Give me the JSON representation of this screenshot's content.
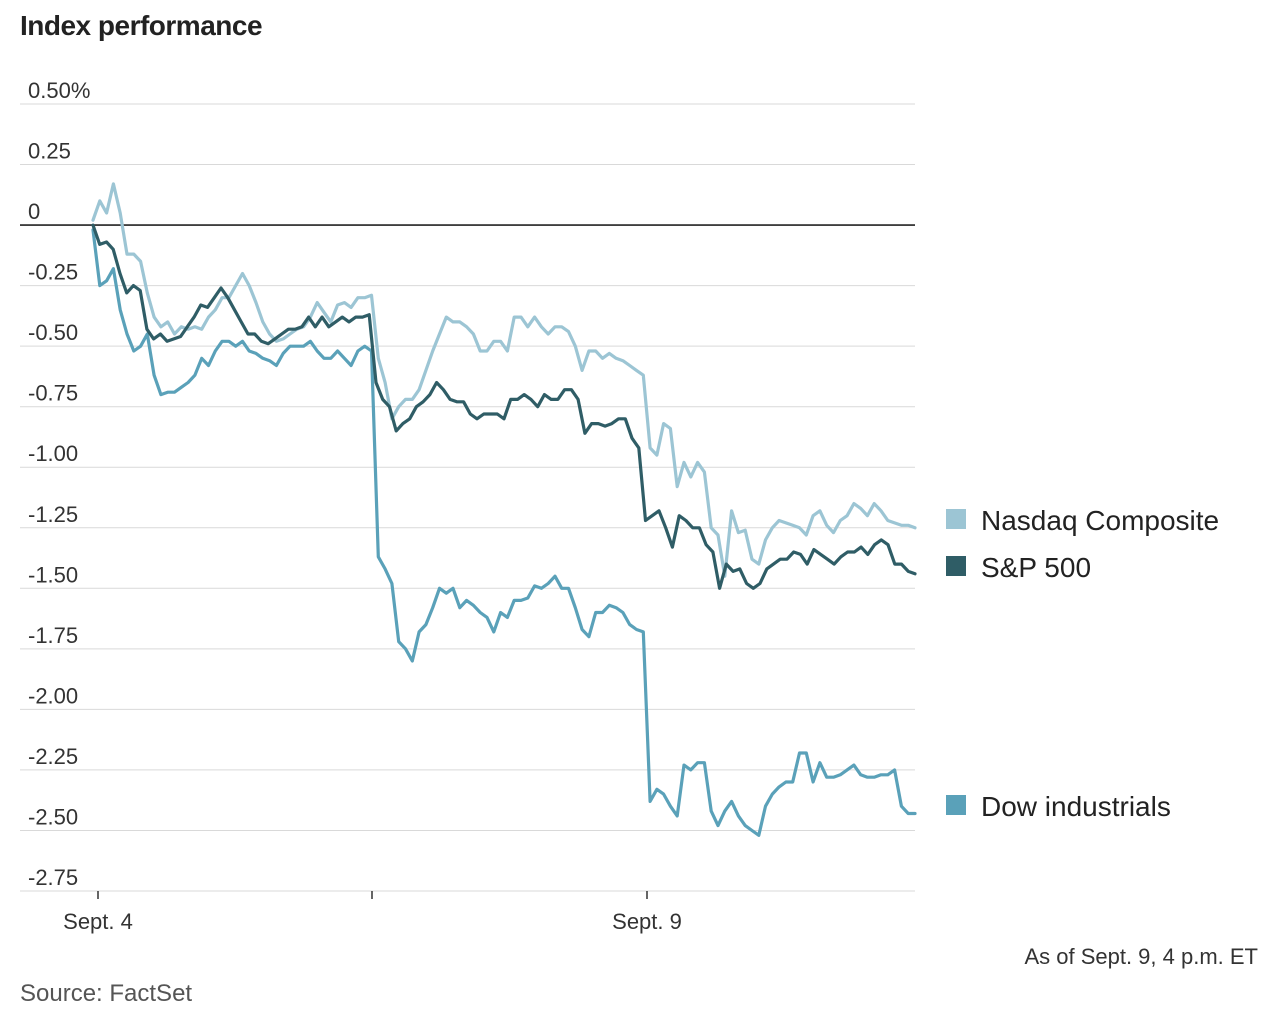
{
  "chart_data": {
    "type": "line",
    "title": "Index performance",
    "ylim": [
      -2.75,
      0.5
    ],
    "yticks": [
      0.5,
      0.25,
      0,
      -0.25,
      -0.5,
      -0.75,
      -1.0,
      -1.25,
      -1.5,
      -1.75,
      -2.0,
      -2.25,
      -2.5,
      -2.75
    ],
    "ytick_labels": [
      "0.50%",
      "0.25",
      "0",
      "-0.25",
      "-0.50",
      "-0.75",
      "-1.00",
      "-1.25",
      "-1.50",
      "-1.75",
      "-2.00",
      "-2.25",
      "-2.50",
      "-2.75"
    ],
    "x_labels": [
      "Sept. 4",
      "",
      "Sept. 9"
    ],
    "grid": true,
    "legend": "right",
    "series": [
      {
        "name": "Nasdaq Composite",
        "color": "#9cc5d4",
        "values": [
          0.02,
          0.1,
          0.05,
          0.17,
          0.05,
          -0.12,
          -0.12,
          -0.15,
          -0.28,
          -0.38,
          -0.42,
          -0.4,
          -0.45,
          -0.42,
          -0.43,
          -0.42,
          -0.43,
          -0.38,
          -0.35,
          -0.3,
          -0.3,
          -0.25,
          -0.2,
          -0.25,
          -0.32,
          -0.4,
          -0.45,
          -0.48,
          -0.47,
          -0.45,
          -0.43,
          -0.42,
          -0.38,
          -0.32,
          -0.36,
          -0.4,
          -0.33,
          -0.32,
          -0.34,
          -0.3,
          -0.3,
          -0.29,
          -0.55,
          -0.65,
          -0.8,
          -0.75,
          -0.72,
          -0.72,
          -0.68,
          -0.6,
          -0.52,
          -0.45,
          -0.38,
          -0.4,
          -0.4,
          -0.42,
          -0.45,
          -0.52,
          -0.52,
          -0.48,
          -0.48,
          -0.52,
          -0.38,
          -0.38,
          -0.42,
          -0.38,
          -0.42,
          -0.45,
          -0.42,
          -0.42,
          -0.44,
          -0.5,
          -0.6,
          -0.52,
          -0.52,
          -0.55,
          -0.53,
          -0.55,
          -0.56,
          -0.58,
          -0.6,
          -0.62,
          -0.92,
          -0.95,
          -0.82,
          -0.84,
          -1.08,
          -0.98,
          -1.04,
          -0.98,
          -1.02,
          -1.25,
          -1.28,
          -1.45,
          -1.18,
          -1.27,
          -1.26,
          -1.38,
          -1.4,
          -1.3,
          -1.25,
          -1.22,
          -1.23,
          -1.24,
          -1.25,
          -1.28,
          -1.2,
          -1.18,
          -1.24,
          -1.27,
          -1.22,
          -1.2,
          -1.15,
          -1.17,
          -1.2,
          -1.15,
          -1.18,
          -1.22,
          -1.23,
          -1.24,
          -1.24,
          -1.25
        ]
      },
      {
        "name": "S&P 500",
        "color": "#2f5d66",
        "values": [
          0.0,
          -0.08,
          -0.07,
          -0.1,
          -0.2,
          -0.28,
          -0.25,
          -0.27,
          -0.43,
          -0.47,
          -0.45,
          -0.48,
          -0.47,
          -0.46,
          -0.42,
          -0.38,
          -0.33,
          -0.34,
          -0.3,
          -0.26,
          -0.3,
          -0.35,
          -0.4,
          -0.45,
          -0.45,
          -0.48,
          -0.49,
          -0.47,
          -0.45,
          -0.43,
          -0.43,
          -0.42,
          -0.38,
          -0.42,
          -0.38,
          -0.42,
          -0.4,
          -0.38,
          -0.4,
          -0.38,
          -0.38,
          -0.37,
          -0.65,
          -0.72,
          -0.75,
          -0.85,
          -0.82,
          -0.8,
          -0.75,
          -0.73,
          -0.7,
          -0.65,
          -0.68,
          -0.72,
          -0.73,
          -0.73,
          -0.78,
          -0.8,
          -0.78,
          -0.78,
          -0.78,
          -0.8,
          -0.72,
          -0.72,
          -0.7,
          -0.72,
          -0.75,
          -0.7,
          -0.72,
          -0.72,
          -0.68,
          -0.68,
          -0.72,
          -0.86,
          -0.82,
          -0.82,
          -0.83,
          -0.82,
          -0.8,
          -0.8,
          -0.88,
          -0.92,
          -1.22,
          -1.2,
          -1.18,
          -1.25,
          -1.33,
          -1.2,
          -1.22,
          -1.25,
          -1.25,
          -1.32,
          -1.35,
          -1.5,
          -1.4,
          -1.43,
          -1.42,
          -1.48,
          -1.5,
          -1.48,
          -1.42,
          -1.4,
          -1.38,
          -1.38,
          -1.35,
          -1.36,
          -1.4,
          -1.34,
          -1.36,
          -1.38,
          -1.4,
          -1.37,
          -1.35,
          -1.35,
          -1.33,
          -1.36,
          -1.32,
          -1.3,
          -1.32,
          -1.4,
          -1.4,
          -1.43,
          -1.44
        ]
      },
      {
        "name": "Dow industrials",
        "color": "#5aa1b9",
        "values": [
          -0.02,
          -0.25,
          -0.23,
          -0.18,
          -0.35,
          -0.45,
          -0.52,
          -0.5,
          -0.45,
          -0.62,
          -0.7,
          -0.69,
          -0.69,
          -0.67,
          -0.65,
          -0.62,
          -0.55,
          -0.58,
          -0.52,
          -0.48,
          -0.48,
          -0.5,
          -0.48,
          -0.52,
          -0.53,
          -0.55,
          -0.56,
          -0.58,
          -0.53,
          -0.5,
          -0.5,
          -0.5,
          -0.48,
          -0.52,
          -0.55,
          -0.55,
          -0.52,
          -0.55,
          -0.58,
          -0.52,
          -0.5,
          -0.52,
          -1.37,
          -1.42,
          -1.48,
          -1.72,
          -1.75,
          -1.8,
          -1.68,
          -1.65,
          -1.58,
          -1.5,
          -1.52,
          -1.5,
          -1.58,
          -1.55,
          -1.57,
          -1.6,
          -1.62,
          -1.68,
          -1.6,
          -1.62,
          -1.55,
          -1.55,
          -1.54,
          -1.49,
          -1.5,
          -1.48,
          -1.45,
          -1.5,
          -1.5,
          -1.58,
          -1.67,
          -1.7,
          -1.6,
          -1.6,
          -1.57,
          -1.58,
          -1.6,
          -1.65,
          -1.67,
          -1.68,
          -2.38,
          -2.33,
          -2.35,
          -2.4,
          -2.44,
          -2.23,
          -2.25,
          -2.22,
          -2.22,
          -2.42,
          -2.48,
          -2.42,
          -2.38,
          -2.44,
          -2.48,
          -2.5,
          -2.52,
          -2.4,
          -2.35,
          -2.32,
          -2.3,
          -2.3,
          -2.18,
          -2.18,
          -2.3,
          -2.22,
          -2.28,
          -2.28,
          -2.27,
          -2.25,
          -2.23,
          -2.27,
          -2.28,
          -2.28,
          -2.27,
          -2.27,
          -2.25,
          -2.4,
          -2.43,
          -2.43
        ]
      }
    ]
  },
  "footer": {
    "as_of": "As of Sept. 9, 4 p.m. ET",
    "source": "Source: FactSet"
  }
}
